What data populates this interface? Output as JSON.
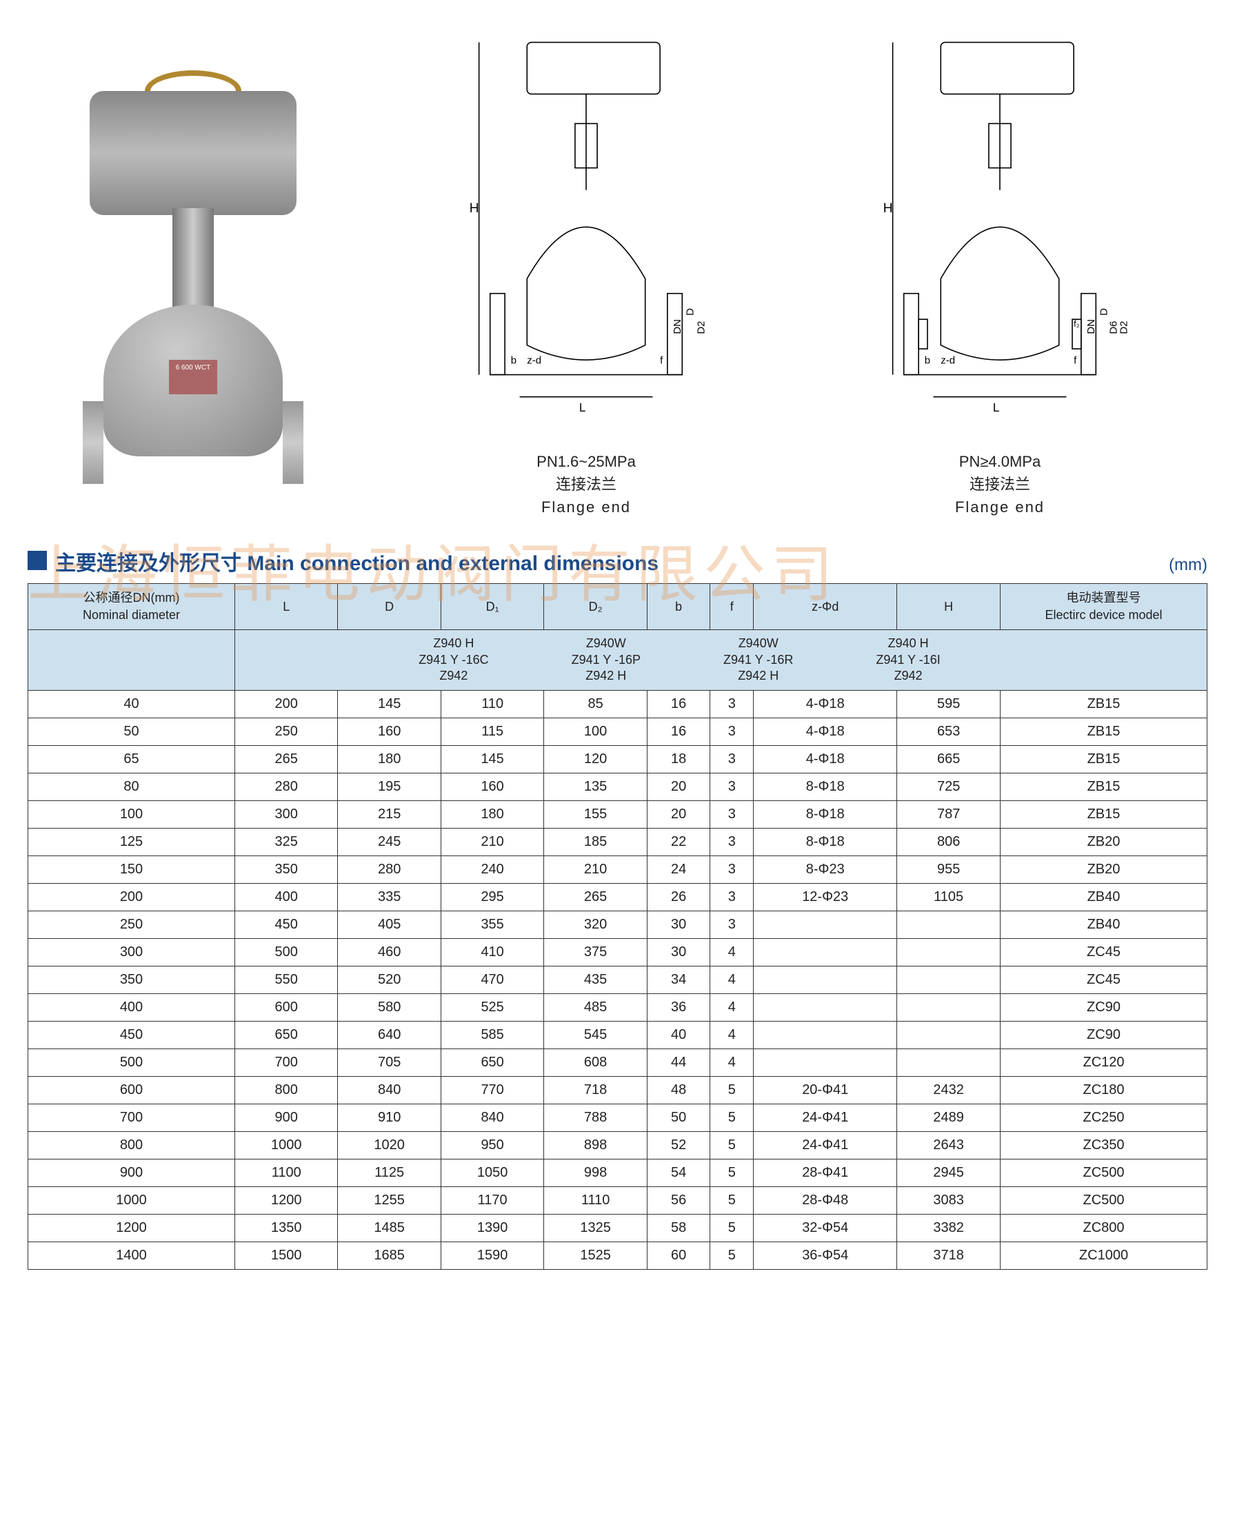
{
  "watermark": "上海恒菲电动阀门有限公司",
  "photo_plate": "6\n600\nWCT",
  "diagrams": [
    {
      "pn": "PN1.6~25MPa",
      "cn": "连接法兰",
      "en": "Flange end",
      "dims": [
        "H",
        "D",
        "DN",
        "D2",
        "b",
        "z-d",
        "L",
        "f"
      ]
    },
    {
      "pn": "PN≥4.0MPa",
      "cn": "连接法兰",
      "en": "Flange end",
      "dims": [
        "H",
        "D",
        "DN",
        "D6",
        "D2",
        "f2",
        "b",
        "z-d",
        "L",
        "f"
      ]
    }
  ],
  "section": {
    "title": "主要连接及外形尺寸 Main connection and external dimensions",
    "unit": "(mm)"
  },
  "table": {
    "columns": [
      {
        "cn": "公称通径DN(mm)",
        "en": "Nominal diameter",
        "key": "dn"
      },
      {
        "cn": "L",
        "en": "",
        "key": "L"
      },
      {
        "cn": "D",
        "en": "",
        "key": "D"
      },
      {
        "cn": "D₁",
        "en": "",
        "key": "D1"
      },
      {
        "cn": "D₂",
        "en": "",
        "key": "D2"
      },
      {
        "cn": "b",
        "en": "",
        "key": "b"
      },
      {
        "cn": "f",
        "en": "",
        "key": "f"
      },
      {
        "cn": "z-Φd",
        "en": "",
        "key": "zd"
      },
      {
        "cn": "H",
        "en": "",
        "key": "H"
      },
      {
        "cn": "电动装置型号",
        "en": "Electirc device model",
        "key": "model"
      }
    ],
    "model_groups": [
      "Z940 H\nZ941 Y -16C\nZ942",
      "Z940W\nZ941 Y -16P\nZ942 H",
      "Z940W\nZ941 Y -16R\nZ942 H",
      "Z940 H\nZ941 Y -16I\nZ942"
    ],
    "rows": [
      {
        "dn": "40",
        "L": "200",
        "D": "145",
        "D1": "110",
        "D2": "85",
        "b": "16",
        "f": "3",
        "zd": "4-Φ18",
        "H": "595",
        "model": "ZB15"
      },
      {
        "dn": "50",
        "L": "250",
        "D": "160",
        "D1": "115",
        "D2": "100",
        "b": "16",
        "f": "3",
        "zd": "4-Φ18",
        "H": "653",
        "model": "ZB15"
      },
      {
        "dn": "65",
        "L": "265",
        "D": "180",
        "D1": "145",
        "D2": "120",
        "b": "18",
        "f": "3",
        "zd": "4-Φ18",
        "H": "665",
        "model": "ZB15"
      },
      {
        "dn": "80",
        "L": "280",
        "D": "195",
        "D1": "160",
        "D2": "135",
        "b": "20",
        "f": "3",
        "zd": "8-Φ18",
        "H": "725",
        "model": "ZB15"
      },
      {
        "dn": "100",
        "L": "300",
        "D": "215",
        "D1": "180",
        "D2": "155",
        "b": "20",
        "f": "3",
        "zd": "8-Φ18",
        "H": "787",
        "model": "ZB15"
      },
      {
        "dn": "125",
        "L": "325",
        "D": "245",
        "D1": "210",
        "D2": "185",
        "b": "22",
        "f": "3",
        "zd": "8-Φ18",
        "H": "806",
        "model": "ZB20"
      },
      {
        "dn": "150",
        "L": "350",
        "D": "280",
        "D1": "240",
        "D2": "210",
        "b": "24",
        "f": "3",
        "zd": "8-Φ23",
        "H": "955",
        "model": "ZB20"
      },
      {
        "dn": "200",
        "L": "400",
        "D": "335",
        "D1": "295",
        "D2": "265",
        "b": "26",
        "f": "3",
        "zd": "12-Φ23",
        "H": "1105",
        "model": "ZB40"
      },
      {
        "dn": "250",
        "L": "450",
        "D": "405",
        "D1": "355",
        "D2": "320",
        "b": "30",
        "f": "3",
        "zd": "",
        "H": "",
        "model": "ZB40"
      },
      {
        "dn": "300",
        "L": "500",
        "D": "460",
        "D1": "410",
        "D2": "375",
        "b": "30",
        "f": "4",
        "zd": "",
        "H": "",
        "model": "ZC45"
      },
      {
        "dn": "350",
        "L": "550",
        "D": "520",
        "D1": "470",
        "D2": "435",
        "b": "34",
        "f": "4",
        "zd": "",
        "H": "",
        "model": "ZC45"
      },
      {
        "dn": "400",
        "L": "600",
        "D": "580",
        "D1": "525",
        "D2": "485",
        "b": "36",
        "f": "4",
        "zd": "",
        "H": "",
        "model": "ZC90"
      },
      {
        "dn": "450",
        "L": "650",
        "D": "640",
        "D1": "585",
        "D2": "545",
        "b": "40",
        "f": "4",
        "zd": "",
        "H": "",
        "model": "ZC90"
      },
      {
        "dn": "500",
        "L": "700",
        "D": "705",
        "D1": "650",
        "D2": "608",
        "b": "44",
        "f": "4",
        "zd": "",
        "H": "",
        "model": "ZC120"
      },
      {
        "dn": "600",
        "L": "800",
        "D": "840",
        "D1": "770",
        "D2": "718",
        "b": "48",
        "f": "5",
        "zd": "20-Φ41",
        "H": "2432",
        "model": "ZC180"
      },
      {
        "dn": "700",
        "L": "900",
        "D": "910",
        "D1": "840",
        "D2": "788",
        "b": "50",
        "f": "5",
        "zd": "24-Φ41",
        "H": "2489",
        "model": "ZC250"
      },
      {
        "dn": "800",
        "L": "1000",
        "D": "1020",
        "D1": "950",
        "D2": "898",
        "b": "52",
        "f": "5",
        "zd": "24-Φ41",
        "H": "2643",
        "model": "ZC350"
      },
      {
        "dn": "900",
        "L": "1100",
        "D": "1125",
        "D1": "1050",
        "D2": "998",
        "b": "54",
        "f": "5",
        "zd": "28-Φ41",
        "H": "2945",
        "model": "ZC500"
      },
      {
        "dn": "1000",
        "L": "1200",
        "D": "1255",
        "D1": "1170",
        "D2": "1110",
        "b": "56",
        "f": "5",
        "zd": "28-Φ48",
        "H": "3083",
        "model": "ZC500"
      },
      {
        "dn": "1200",
        "L": "1350",
        "D": "1485",
        "D1": "1390",
        "D2": "1325",
        "b": "58",
        "f": "5",
        "zd": "32-Φ54",
        "H": "3382",
        "model": "ZC800"
      },
      {
        "dn": "1400",
        "L": "1500",
        "D": "1685",
        "D1": "1590",
        "D2": "1525",
        "b": "60",
        "f": "5",
        "zd": "36-Φ54",
        "H": "3718",
        "model": "ZC1000"
      }
    ]
  },
  "colors": {
    "header_bg": "#cde0ee",
    "accent": "#1a4a8a",
    "border": "#333333",
    "watermark": "rgba(230,150,80,0.35)"
  }
}
